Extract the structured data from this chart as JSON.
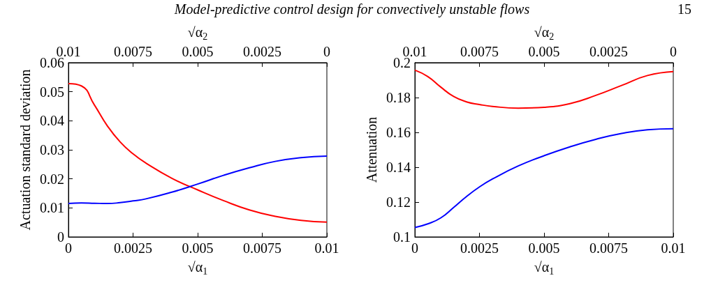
{
  "chart_data": [
    {
      "type": "line",
      "annotations": [
        "Model-predictive control design for convectively unstable flows",
        "15"
      ],
      "xlabel": "√α$_{1}$",
      "x2label": "√α$_{2}$",
      "ylabel": "Actuation standard deviation",
      "x": [
        0,
        0.0005,
        0.001,
        0.0015,
        0.002,
        0.0025,
        0.003,
        0.004,
        0.005,
        0.006,
        0.007,
        0.008,
        0.009,
        0.01
      ],
      "series": [
        {
          "color": "#ff0000",
          "values": [
            0.0528,
            0.052,
            0.0455,
            0.0383,
            0.0327,
            0.0286,
            0.0254,
            0.0202,
            0.0162,
            0.0125,
            0.0093,
            0.0071,
            0.0057,
            0.0051
          ]
        },
        {
          "color": "#0000ff",
          "values": [
            0.0115,
            0.0117,
            0.0116,
            0.0115,
            0.0118,
            0.0124,
            0.0131,
            0.0154,
            0.0182,
            0.0212,
            0.0238,
            0.026,
            0.0273,
            0.0278
          ]
        }
      ],
      "xlim": [
        0,
        0.01
      ],
      "xticks": [
        0,
        0.0025,
        0.005,
        0.0075,
        0.01
      ],
      "x2lim": [
        0.01,
        0
      ],
      "x2ticks": [
        0.01,
        0.0075,
        0.005,
        0.0025,
        0
      ],
      "ylim": [
        0,
        0.06
      ],
      "yticks": [
        0,
        0.01,
        0.02,
        0.03,
        0.04,
        0.05,
        0.06
      ],
      "grid": false,
      "line_style": "solid",
      "marker": "none"
    },
    {
      "type": "line",
      "xlabel": "√α$_{1}$",
      "x2label": "√α$_{2}$",
      "ylabel": "Attenuation",
      "x": [
        0,
        0.0005,
        0.001,
        0.0015,
        0.002,
        0.0025,
        0.003,
        0.004,
        0.005,
        0.006,
        0.007,
        0.008,
        0.009,
        0.01
      ],
      "series": [
        {
          "color": "#ff0000",
          "values": [
            0.1957,
            0.192,
            0.186,
            0.1806,
            0.1775,
            0.176,
            0.1749,
            0.1739,
            0.1744,
            0.1765,
            0.1812,
            0.1869,
            0.1926,
            0.1949
          ]
        },
        {
          "color": "#0000ff",
          "values": [
            0.1054,
            0.1075,
            0.1109,
            0.1169,
            0.1232,
            0.1287,
            0.1332,
            0.1407,
            0.1466,
            0.1517,
            0.156,
            0.1594,
            0.1615,
            0.1621
          ]
        }
      ],
      "xlim": [
        0,
        0.01
      ],
      "xticks": [
        0,
        0.0025,
        0.005,
        0.0075,
        0.01
      ],
      "x2lim": [
        0.01,
        0
      ],
      "x2ticks": [
        0.01,
        0.0075,
        0.005,
        0.0025,
        0
      ],
      "ylim": [
        0.1,
        0.2
      ],
      "yticks": [
        0.1,
        0.12,
        0.14,
        0.16,
        0.18,
        0.2
      ],
      "grid": false,
      "line_style": "solid",
      "marker": "none"
    }
  ]
}
